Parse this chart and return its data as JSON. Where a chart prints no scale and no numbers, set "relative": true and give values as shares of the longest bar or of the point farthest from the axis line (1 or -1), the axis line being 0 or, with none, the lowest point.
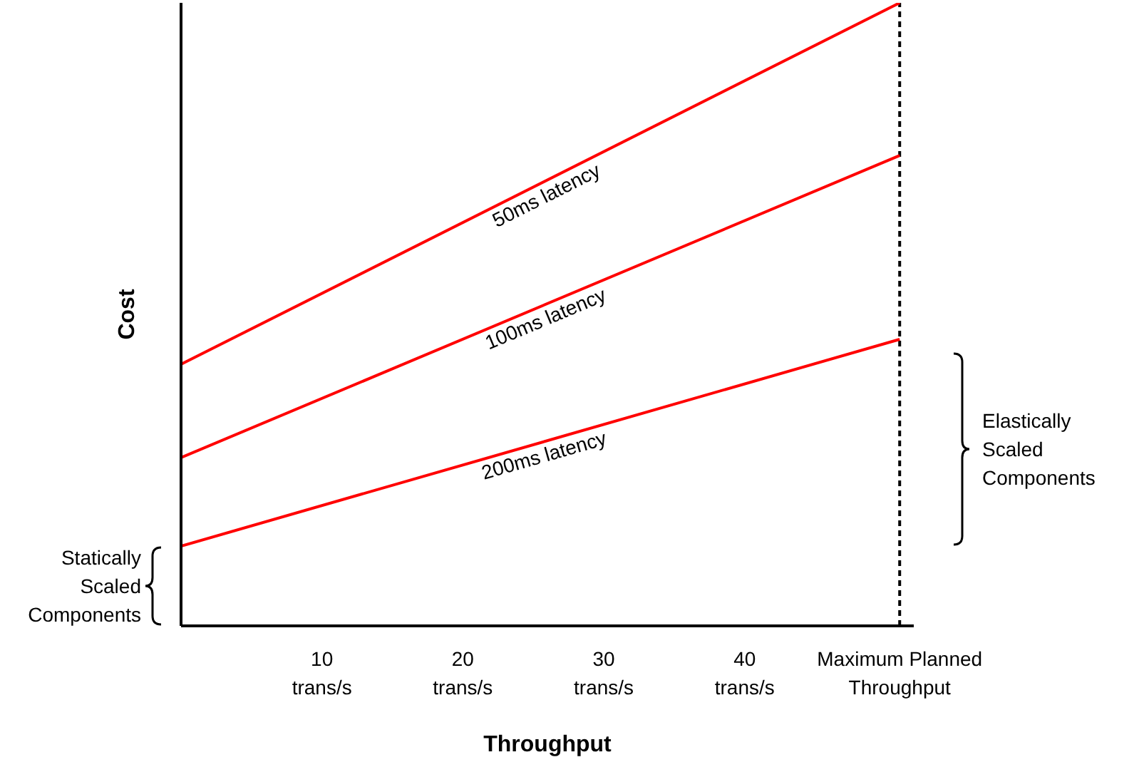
{
  "chart_data": {
    "type": "line",
    "relative": true,
    "xlabel": "Throughput",
    "ylabel": "Cost",
    "x": [
      0,
      51
    ],
    "xlim": [
      0,
      52
    ],
    "xticks": [
      {
        "value": 10,
        "label": "10 trans/s"
      },
      {
        "value": 20,
        "label": "20 trans/s"
      },
      {
        "value": 30,
        "label": "30 trans/s"
      },
      {
        "value": 40,
        "label": "40 trans/s"
      },
      {
        "value": 51,
        "label": "Maximum Planned Throughput"
      }
    ],
    "series": [
      {
        "name": "50ms latency",
        "color": "#ff0000",
        "values": [
          0.42,
          1
        ]
      },
      {
        "name": "100ms latency",
        "color": "#ff0000",
        "values": [
          0.27,
          0.755
        ]
      },
      {
        "name": "200ms latency",
        "color": "#ff0000",
        "values": [
          0.128,
          0.46
        ]
      }
    ],
    "ref_lines": [
      {
        "axis": "x",
        "value": 51,
        "color": "#000000",
        "line_style": "dashed"
      }
    ],
    "annotations": [
      "Statically Scaled Components",
      "Elastically Scaled Components"
    ],
    "grid": false,
    "legend": false,
    "marker": "none",
    "line_style": "solid"
  }
}
